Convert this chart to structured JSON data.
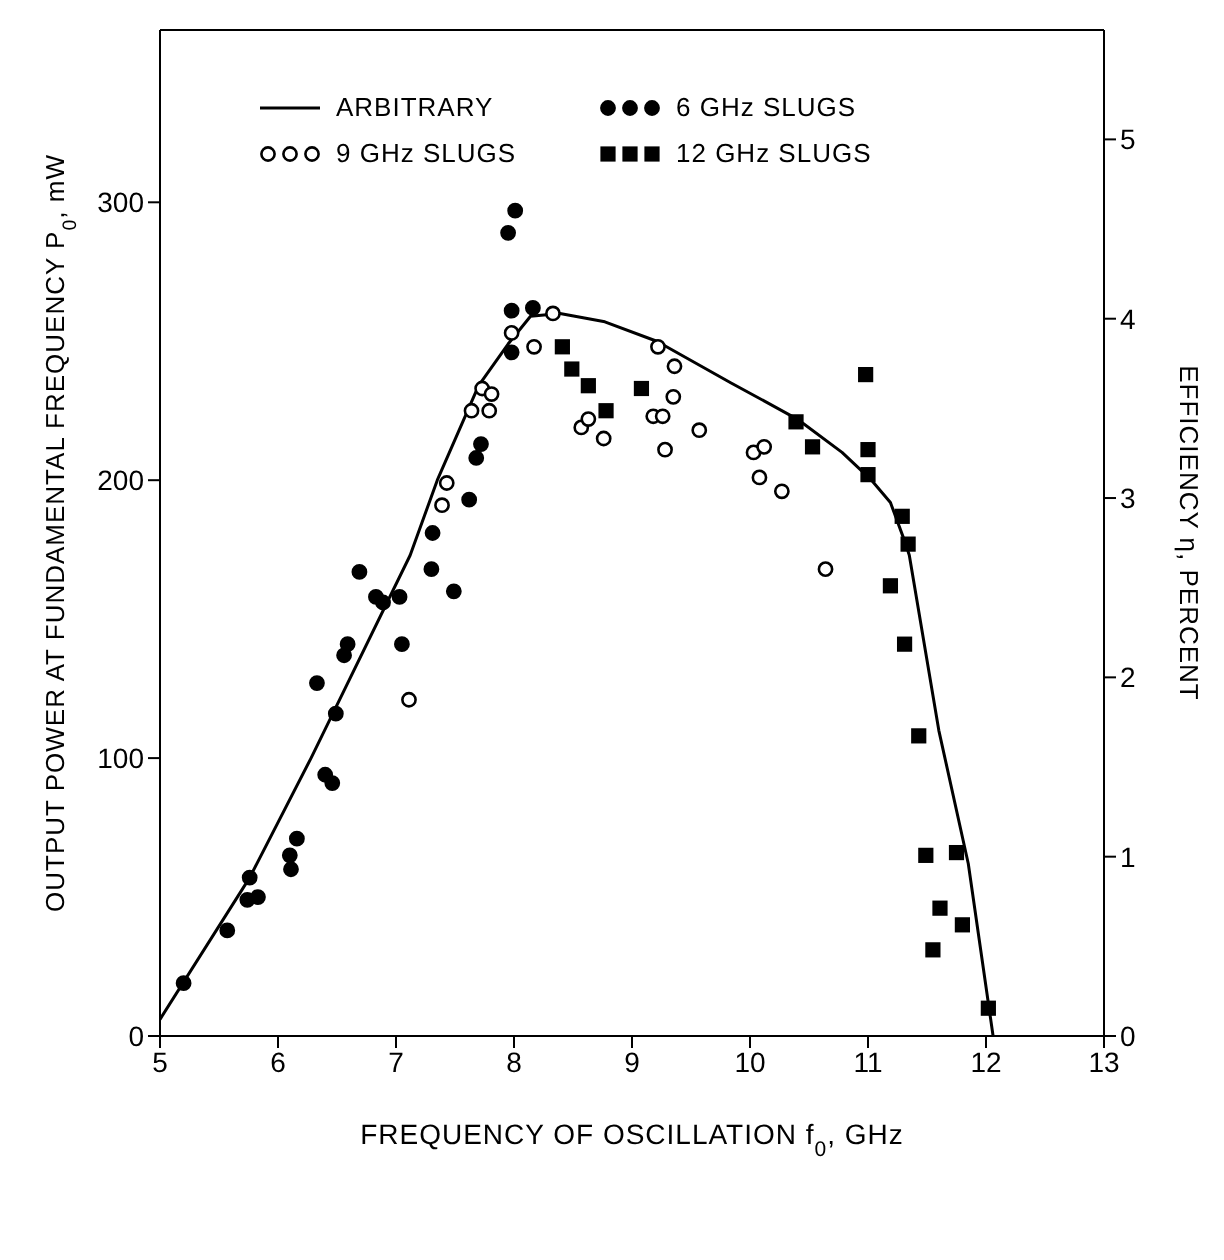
{
  "chart_data": {
    "type": "scatter",
    "xlabel": "FREQUENCY OF OSCILLATION f$_{0}$, GHz",
    "ylabel": "OUTPUT POWER AT FUNDAMENTAL FREQUENCY P$_{0}$, mW",
    "y2label": "EFFICIENCY η, PERCENT",
    "xlim": [
      5,
      13
    ],
    "xticks": [
      5,
      6,
      7,
      8,
      9,
      10,
      11,
      12,
      13
    ],
    "ylim": [
      0,
      362
    ],
    "yticks": [
      0,
      100,
      200,
      300
    ],
    "y2lim": [
      0,
      5.61
    ],
    "y2ticks": [
      0,
      1,
      2,
      3,
      4,
      5
    ],
    "legend": "top",
    "series": [
      {
        "name": "ARBITRARY",
        "type": "line",
        "color": "#000000",
        "marker": "none",
        "line_style": "solid",
        "x": [
          5.0,
          5.76,
          6.28,
          7.12,
          7.35,
          7.7,
          7.95,
          8.14,
          8.39,
          8.77,
          9.21,
          9.84,
          10.4,
          10.78,
          11.03,
          11.19,
          11.32,
          11.35,
          11.6,
          11.85,
          12.06
        ],
        "values": [
          6,
          57,
          100,
          173,
          200,
          234,
          249,
          259,
          260,
          257,
          250,
          235,
          222,
          210,
          200,
          192,
          177,
          173,
          110,
          62,
          0
        ]
      },
      {
        "name": "6 GHz SLUGS",
        "color": "#000000",
        "marker": "circle",
        "x": [
          5.2,
          5.57,
          5.76,
          5.74,
          5.83,
          6.1,
          6.11,
          6.16,
          6.33,
          6.4,
          6.46,
          6.49,
          6.56,
          6.59,
          6.69,
          6.83,
          6.89,
          7.03,
          7.05,
          7.3,
          7.49,
          7.31,
          7.62,
          7.68,
          7.72,
          7.95,
          8.01,
          7.98,
          8.16,
          7.98
        ],
        "values": [
          19,
          38,
          57,
          49,
          50,
          65,
          60,
          71,
          127,
          94,
          91,
          116,
          137,
          141,
          167,
          158,
          156,
          158,
          141,
          168,
          160,
          181,
          193,
          208,
          213,
          289,
          297,
          261,
          262,
          246
        ]
      },
      {
        "name": "9 GHz SLUGS",
        "color": "#ffffff",
        "marker": "circle",
        "x": [
          7.11,
          10.64,
          7.39,
          7.43,
          7.64,
          7.79,
          7.73,
          7.81,
          7.98,
          8.17,
          8.33,
          8.57,
          8.63,
          8.76,
          9.18,
          9.26,
          9.22,
          9.36,
          9.35,
          9.28,
          9.57,
          10.03,
          10.12,
          10.08,
          10.27
        ],
        "values": [
          121,
          168,
          191,
          199,
          225,
          225,
          233,
          231,
          253,
          248,
          260,
          219,
          222,
          215,
          223,
          223,
          248,
          241,
          230,
          211,
          218,
          210,
          212,
          201,
          196
        ]
      },
      {
        "name": "12 GHz SLUGS",
        "color": "#000000",
        "marker": "square",
        "x": [
          8.41,
          8.49,
          8.63,
          8.78,
          9.08,
          10.39,
          10.53,
          10.98,
          11.0,
          11.0,
          11.29,
          11.34,
          11.19,
          11.31,
          11.43,
          11.49,
          11.75,
          11.61,
          11.55,
          11.8,
          12.02
        ],
        "values": [
          248,
          240,
          234,
          225,
          233,
          221,
          212,
          238,
          211,
          202,
          187,
          177,
          162,
          141,
          108,
          65,
          66,
          46,
          31,
          40,
          10
        ]
      }
    ]
  }
}
